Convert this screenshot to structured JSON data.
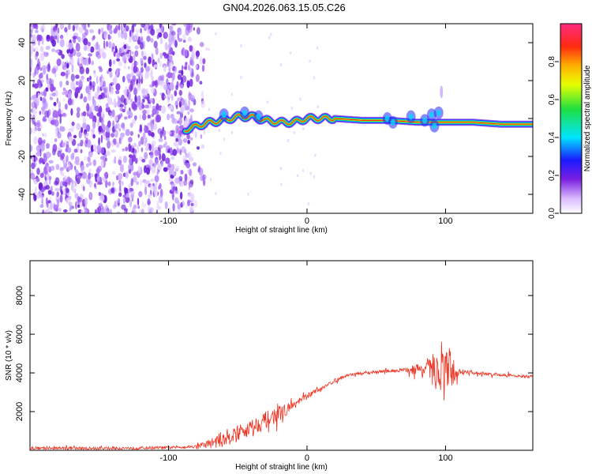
{
  "title": "GN04.2026.063.15.05.C26",
  "chart_data": [
    {
      "type": "heatmap",
      "xlabel": "Height of straight line (km)",
      "ylabel": "Frequency (Hz)",
      "xlim": [
        -200,
        163
      ],
      "ylim": [
        -50,
        50
      ],
      "xticks": [
        -100,
        0,
        100
      ],
      "yticks": [
        -40,
        -20,
        0,
        20,
        40
      ],
      "xtick_labels": [
        "-100",
        "0",
        "100"
      ],
      "ytick_labels": [
        "-40",
        "-20",
        "0",
        "20",
        "40"
      ],
      "colorbar": {
        "label": "Normalized spectral amplitude",
        "range": [
          0,
          1
        ],
        "ticks": [
          0,
          0.2,
          0.4,
          0.6,
          0.8
        ],
        "tick_labels": [
          "0.0",
          "0.2",
          "0.4",
          "0.6",
          "0.8"
        ]
      },
      "noise_region_x": [
        -200,
        -82
      ],
      "ridge": {
        "x": [
          -88,
          -80,
          -70,
          -60,
          -50,
          -40,
          -30,
          -20,
          -10,
          0,
          20,
          40,
          60,
          80,
          90,
          100,
          120,
          140,
          163
        ],
        "freq": [
          -6,
          -4,
          -2,
          -1,
          1,
          1,
          -1,
          -2,
          -2,
          0,
          0,
          -1,
          -1,
          -2,
          -2,
          -2,
          -2,
          -3,
          -3
        ]
      }
    },
    {
      "type": "line",
      "xlabel": "Height of straight line (km)",
      "ylabel": "SNR (10 * v/v)",
      "xlim": [
        -200,
        163
      ],
      "ylim": [
        0,
        9800
      ],
      "xticks": [
        -100,
        0,
        100
      ],
      "yticks": [
        2000,
        4000,
        6000,
        8000
      ],
      "xtick_labels": [
        "-100",
        "0",
        "100"
      ],
      "ytick_labels": [
        "2000",
        "4000",
        "6000",
        "8000"
      ],
      "series": [
        {
          "name": "SNR",
          "color": "#ee3322",
          "x": [
            -200,
            -150,
            -100,
            -80,
            -70,
            -60,
            -50,
            -40,
            -30,
            -20,
            -10,
            0,
            10,
            20,
            30,
            50,
            70,
            80,
            90,
            95,
            100,
            105,
            110,
            120,
            140,
            163
          ],
          "mean": [
            120,
            100,
            140,
            200,
            350,
            600,
            900,
            1200,
            1550,
            1900,
            2300,
            2800,
            3200,
            3600,
            3900,
            4050,
            4150,
            4200,
            4150,
            4100,
            4050,
            4050,
            4050,
            4000,
            3900,
            3800
          ],
          "amp": [
            150,
            150,
            150,
            150,
            500,
            900,
            800,
            900,
            900,
            800,
            400,
            300,
            200,
            200,
            150,
            150,
            200,
            600,
            1500,
            2500,
            4000,
            1500,
            300,
            200,
            150,
            150
          ]
        }
      ]
    }
  ]
}
